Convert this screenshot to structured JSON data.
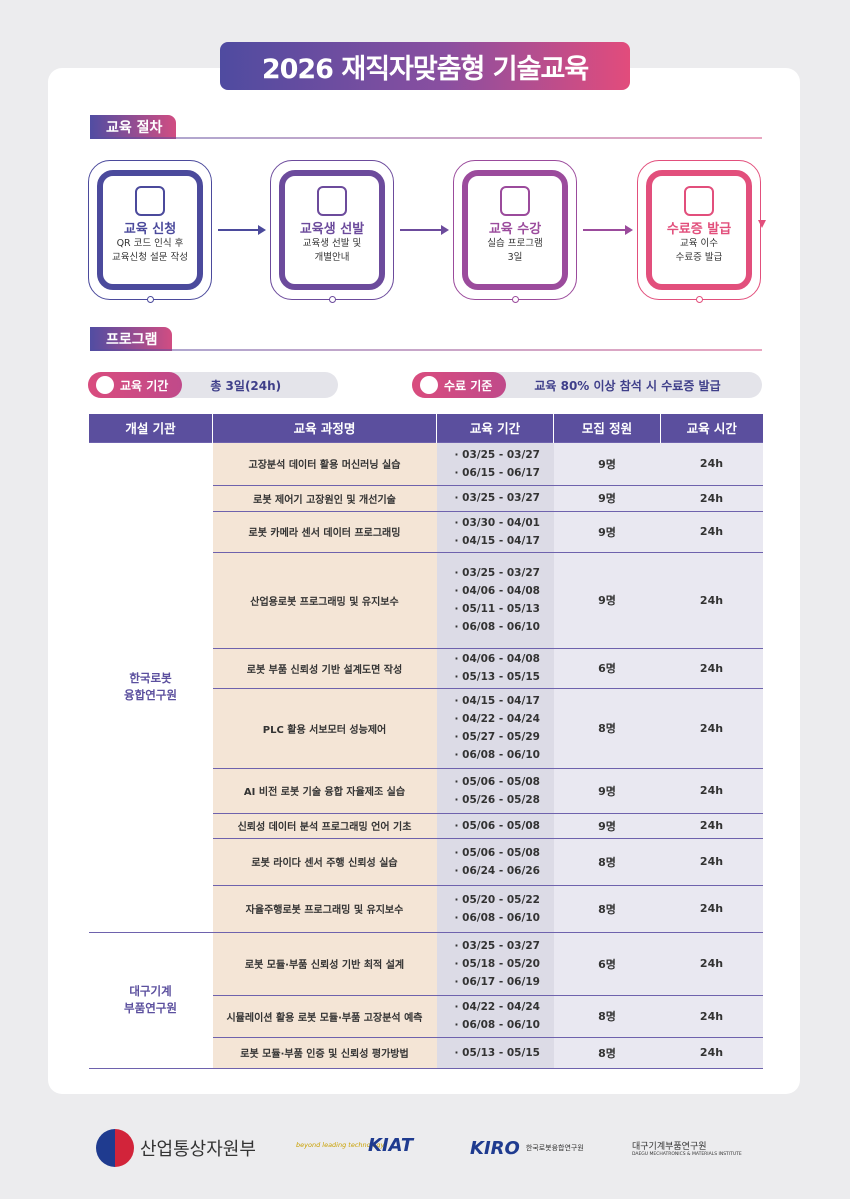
{
  "title": "2026 재직자맞춤형 기술교육",
  "procedure": {
    "heading": "교육 절차",
    "steps": [
      {
        "title": "교육 신청",
        "description": [
          "QR 코드 인식 후",
          "교육신청 설문 작성"
        ]
      },
      {
        "title": "교육생 선발",
        "description": [
          "교육생 선발 및",
          "개별안내"
        ]
      },
      {
        "title": "교육 수강",
        "description": [
          "실습 프로그램",
          "3일"
        ]
      },
      {
        "title": "수료증 발급",
        "description": [
          "교육 이수",
          "수료증 발급"
        ]
      }
    ]
  },
  "program": {
    "heading": "프로그램",
    "period": {
      "label": "교육 기간",
      "value": "총 3일(24h)"
    },
    "completion": {
      "label": "수료 기준",
      "value": "교육 80% 이상 참석 시 수료증 발급"
    },
    "table": {
      "columns": [
        "개설 기관",
        "교육 과정명",
        "교육 기간",
        "모집 정원",
        "교육 시간"
      ],
      "groups": [
        {
          "institution": [
            "한국로봇",
            "융합연구원"
          ],
          "rows": [
            {
              "course": "고장분석 데이터 활용 머신러닝 실습",
              "periods": [
                "· 03/25 - 03/27",
                "· 06/15 - 06/17"
              ],
              "capacity": "9명",
              "hours": "24h"
            },
            {
              "course": "로봇 제어기 고장원인 및 개선기술",
              "periods": [
                "· 03/25 - 03/27"
              ],
              "capacity": "9명",
              "hours": "24h"
            },
            {
              "course": "로봇 카메라 센서 데이터 프로그래밍",
              "periods": [
                "· 03/30 - 04/01",
                "· 04/15 - 04/17"
              ],
              "capacity": "9명",
              "hours": "24h"
            },
            {
              "course": "산업용로봇 프로그래밍 및 유지보수",
              "periods": [
                "· 03/25 - 03/27",
                "· 04/06 - 04/08",
                "· 05/11 - 05/13",
                "· 06/08 - 06/10"
              ],
              "capacity": "9명",
              "hours": "24h"
            },
            {
              "course": "로봇 부품 신뢰성 기반 설계도면 작성",
              "periods": [
                "· 04/06 - 04/08",
                "· 05/13 - 05/15"
              ],
              "capacity": "6명",
              "hours": "24h"
            },
            {
              "course": "PLC 활용 서보모터 성능제어",
              "periods": [
                "· 04/15 - 04/17",
                "· 04/22 - 04/24",
                "· 05/27 - 05/29",
                "· 06/08 - 06/10"
              ],
              "capacity": "8명",
              "hours": "24h"
            },
            {
              "course": "AI 비전 로봇 기술 융합 자율제조 실습",
              "periods": [
                "· 05/06 - 05/08",
                "· 05/26 - 05/28"
              ],
              "capacity": "9명",
              "hours": "24h"
            },
            {
              "course": "신뢰성 데이터 분석 프로그래밍 언어 기초",
              "periods": [
                "· 05/06 - 05/08"
              ],
              "capacity": "9명",
              "hours": "24h"
            },
            {
              "course": "로봇 라이다 센서 주행 신뢰성 실습",
              "periods": [
                "· 05/06 - 05/08",
                "· 06/24 - 06/26"
              ],
              "capacity": "8명",
              "hours": "24h"
            },
            {
              "course": "자율주행로봇 프로그래밍 및 유지보수",
              "periods": [
                "· 05/20 - 05/22",
                "· 06/08 - 06/10"
              ],
              "capacity": "8명",
              "hours": "24h"
            }
          ]
        },
        {
          "institution": [
            "대구기계",
            "부품연구원"
          ],
          "rows": [
            {
              "course": "로봇 모듈·부품 신뢰성 기반 최적 설계",
              "periods": [
                "· 03/25 - 03/27",
                "· 05/18 - 05/20",
                "· 06/17 - 06/19"
              ],
              "capacity": "6명",
              "hours": "24h"
            },
            {
              "course": "시뮬레이션 활용 로봇 모듈·부품 고장분석 예측",
              "periods": [
                "· 04/22 - 04/24",
                "· 06/08 - 06/10"
              ],
              "capacity": "8명",
              "hours": "24h"
            },
            {
              "course": "로봇 모듈·부품 인증 및 신뢰성 평가방법",
              "periods": [
                "· 05/13 - 05/15"
              ],
              "capacity": "8명",
              "hours": "24h"
            }
          ]
        }
      ]
    }
  },
  "footer": {
    "logos": [
      "산업통상자원부",
      "beyond leading technology",
      "KIAT",
      "KIRO",
      "한국로봇융합연구원",
      "대구기계부품연구원",
      "DAEGU MECHATRONICS & MATERIALS INSTITUTE"
    ]
  }
}
